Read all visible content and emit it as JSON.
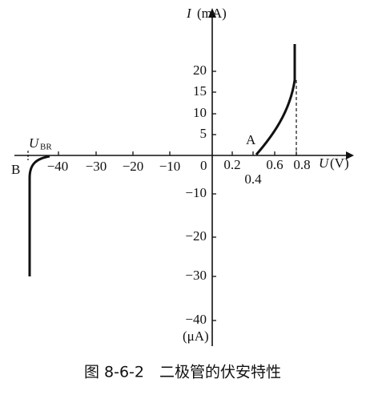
{
  "axes": {
    "y_label": "I",
    "y_unit": "(mA)",
    "x_label": "U",
    "x_unit": "(V)",
    "y_neg_unit": "(μA)",
    "origin": "0"
  },
  "x_ticks_positive": [
    "0.2",
    "0.4",
    "0.6",
    "0.8"
  ],
  "x_ticks_negative": [
    "−40",
    "−30",
    "−20",
    "−10"
  ],
  "y_ticks_positive": [
    "5",
    "10",
    "15",
    "20"
  ],
  "y_ticks_negative": [
    "−10",
    "−20",
    "−30",
    "−40"
  ],
  "points": {
    "A": "A",
    "B": "B",
    "breakdown": {
      "main": "U",
      "sub": "BR"
    }
  },
  "caption": "图 8-6-2　二极管的伏安特性"
}
